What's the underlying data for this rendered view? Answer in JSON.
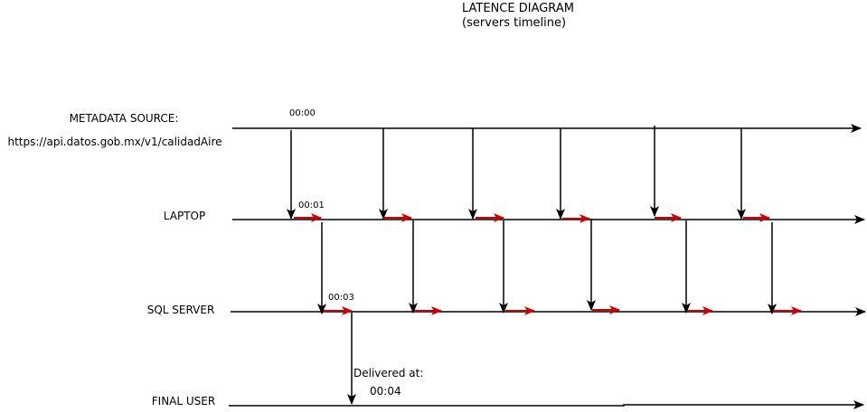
{
  "title": {
    "line1": "LATENCE DIAGRAM",
    "line2": "(servers timeline)"
  },
  "lanes": {
    "metadata": {
      "label": "METADATA SOURCE:",
      "url": "https://api.datos.gob.mx/v1/calidadAire"
    },
    "laptop": {
      "label": "LAPTOP"
    },
    "sql": {
      "label": "SQL SERVER"
    },
    "user": {
      "label": "FINAL USER"
    }
  },
  "timestamps": {
    "t0": "00:00",
    "t1": "00:01",
    "t3": "00:03"
  },
  "delivery": {
    "label": "Delivered at:",
    "time": "00:04"
  },
  "colors": {
    "line": "#000000",
    "processing_arrow": "#cc0000"
  }
}
